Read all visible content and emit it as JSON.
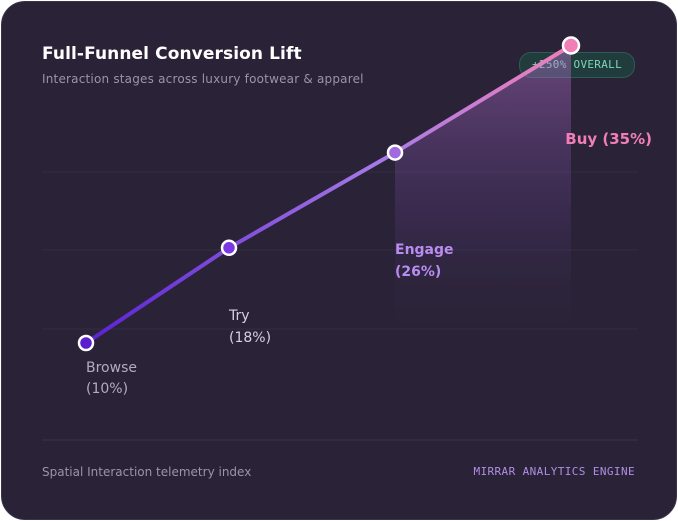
{
  "card": {
    "title": "Full-Funnel Conversion Lift",
    "subtitle": "Interaction stages across luxury footwear & apparel",
    "badge": "+250% OVERALL",
    "footer_left": "Spatial Interaction telemetry index",
    "footer_right": "MIRRAR ANALYTICS ENGINE"
  },
  "colors": {
    "background": "#2a2337",
    "line_start": "#5b21d4",
    "line_mid": "#a87ce6",
    "line_end": "#f27eb8",
    "browse_label": "#b3acbf",
    "try_label": "#d6d0e0",
    "engage_label": "#b98cf0",
    "buy_label": "#f27eb8",
    "badge_text": "#7fd4b8",
    "footer_accent": "#b08ee6"
  },
  "chart_data": {
    "type": "line",
    "categories": [
      "Browse",
      "Try",
      "Engage",
      "Buy"
    ],
    "values": [
      10,
      18,
      26,
      35
    ],
    "value_labels": [
      "(10%)",
      "(18%)",
      "(26%)",
      "Buy (35%)"
    ],
    "grid": true,
    "ylim": [
      0,
      40
    ]
  }
}
